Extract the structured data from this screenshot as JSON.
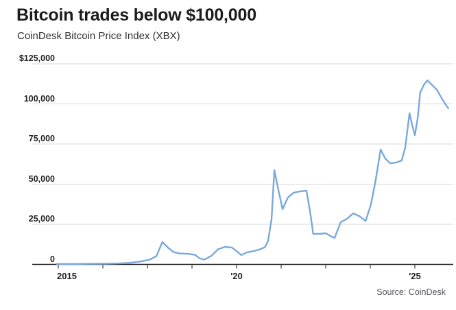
{
  "header": {
    "title": "Bitcoin trades below $100,000",
    "subtitle": "CoinDesk Bitcoin Price Index (XBX)"
  },
  "footer": {
    "source": "Source: CoinDesk"
  },
  "colors": {
    "line": "#79a9da",
    "gridline": "#d9d9d9",
    "axis": "#1a1a1a",
    "title_text": "#1b1b1b",
    "label_text": "#222222",
    "source_text": "#54565b"
  },
  "chart_data": {
    "type": "line",
    "title": "Bitcoin trades below $100,000",
    "subtitle": "CoinDesk Bitcoin Price Index (XBX)",
    "source": "Source: CoinDesk",
    "legend": "none",
    "grid": "horizontal",
    "x_axis": {
      "labels": [
        "2015",
        "'20",
        "'25"
      ],
      "label_years": [
        2015,
        2020,
        2025
      ],
      "range_years": [
        2014.27,
        2026.08
      ],
      "tick_count": 9
    },
    "y_axis": {
      "tick_labels": [
        "$125,000",
        "100,000",
        "75,000",
        "50,000",
        "25,000",
        "0"
      ],
      "tick_values": [
        125000,
        100000,
        75000,
        50000,
        25000,
        0
      ],
      "range": [
        0,
        125000
      ]
    },
    "series": [
      {
        "name": "CoinDesk Bitcoin Price Index (XBX)",
        "points": [
          [
            2014.96,
            300
          ],
          [
            2015.3,
            260
          ],
          [
            2015.8,
            350
          ],
          [
            2016.3,
            440
          ],
          [
            2016.67,
            580
          ],
          [
            2017.0,
            950
          ],
          [
            2017.3,
            1800
          ],
          [
            2017.56,
            2900
          ],
          [
            2017.75,
            5100
          ],
          [
            2017.92,
            13900
          ],
          [
            2018.1,
            10000
          ],
          [
            2018.23,
            7700
          ],
          [
            2018.4,
            6800
          ],
          [
            2018.63,
            6600
          ],
          [
            2018.83,
            6000
          ],
          [
            2018.96,
            3800
          ],
          [
            2019.1,
            3000
          ],
          [
            2019.29,
            5300
          ],
          [
            2019.48,
            9400
          ],
          [
            2019.67,
            10900
          ],
          [
            2019.87,
            10500
          ],
          [
            2020.0,
            8300
          ],
          [
            2020.13,
            5800
          ],
          [
            2020.29,
            7500
          ],
          [
            2020.48,
            8300
          ],
          [
            2020.63,
            9200
          ],
          [
            2020.79,
            10700
          ],
          [
            2020.88,
            14300
          ],
          [
            2020.98,
            28000
          ],
          [
            2021.06,
            58700
          ],
          [
            2021.17,
            46800
          ],
          [
            2021.29,
            34400
          ],
          [
            2021.44,
            41700
          ],
          [
            2021.6,
            44700
          ],
          [
            2021.79,
            45500
          ],
          [
            2021.96,
            45900
          ],
          [
            2022.06,
            33100
          ],
          [
            2022.15,
            19000
          ],
          [
            2022.33,
            19000
          ],
          [
            2022.5,
            19400
          ],
          [
            2022.63,
            17700
          ],
          [
            2022.75,
            16500
          ],
          [
            2022.92,
            26300
          ],
          [
            2023.1,
            28400
          ],
          [
            2023.27,
            31800
          ],
          [
            2023.44,
            30100
          ],
          [
            2023.62,
            27100
          ],
          [
            2023.77,
            37400
          ],
          [
            2023.9,
            52400
          ],
          [
            2024.04,
            71600
          ],
          [
            2024.17,
            66000
          ],
          [
            2024.31,
            63000
          ],
          [
            2024.48,
            63500
          ],
          [
            2024.63,
            64700
          ],
          [
            2024.73,
            72900
          ],
          [
            2024.85,
            94200
          ],
          [
            2024.92,
            87400
          ],
          [
            2025.0,
            80500
          ],
          [
            2025.08,
            91200
          ],
          [
            2025.15,
            107100
          ],
          [
            2025.25,
            111800
          ],
          [
            2025.35,
            114700
          ],
          [
            2025.48,
            111800
          ],
          [
            2025.62,
            108800
          ],
          [
            2025.75,
            103600
          ],
          [
            2025.87,
            99400
          ],
          [
            2025.94,
            97200
          ]
        ]
      }
    ]
  }
}
